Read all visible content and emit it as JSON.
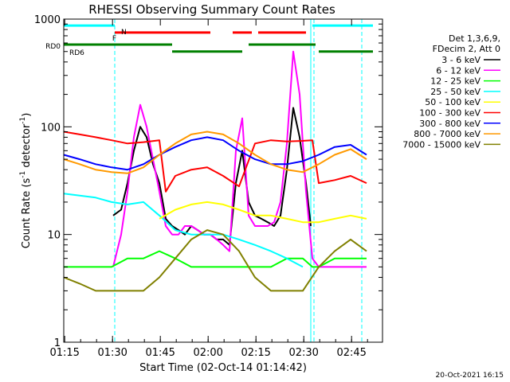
{
  "chart_data": {
    "type": "line",
    "title": "RHESSI Observing Summary Count Rates",
    "xlabel": "Start Time (02-Oct-14 01:14:42)",
    "ylabel_prefix": "Count Rate (s",
    "ylabel_sup1": "-1",
    "ylabel_mid": " detector",
    "ylabel_sup2": "-1",
    "ylabel_suffix": ")",
    "y_scale": "log",
    "ylim": [
      1,
      1000
    ],
    "xlim_minutes": [
      0,
      100
    ],
    "x_ticks": [
      {
        "label": "01:15",
        "min": 0.3
      },
      {
        "label": "01:30",
        "min": 15.3
      },
      {
        "label": "01:45",
        "min": 30.3
      },
      {
        "label": "02:00",
        "min": 45.3
      },
      {
        "label": "02:15",
        "min": 60.3
      },
      {
        "label": "02:30",
        "min": 75.3
      },
      {
        "label": "02:45",
        "min": 90.3
      }
    ],
    "y_ticks": [
      {
        "label": "1",
        "v": 1
      },
      {
        "label": "10",
        "v": 10
      },
      {
        "label": "100",
        "v": 100
      },
      {
        "label": "1000",
        "v": 1000
      }
    ],
    "legend_header": [
      "Det 1,3,6,9,",
      "FDecim 2, Att 0"
    ],
    "series": [
      {
        "name": "3 - 6 keV",
        "color": "#000000",
        "points": [
          [
            15.5,
            15
          ],
          [
            18,
            17
          ],
          [
            20,
            30
          ],
          [
            22,
            60
          ],
          [
            24,
            100
          ],
          [
            26,
            80
          ],
          [
            28,
            45
          ],
          [
            30,
            30
          ],
          [
            32,
            14
          ],
          [
            34,
            12
          ],
          [
            36,
            11
          ],
          [
            38,
            10
          ],
          [
            40,
            12
          ],
          [
            42,
            11
          ],
          [
            44,
            10
          ],
          [
            46,
            10
          ],
          [
            48,
            9
          ],
          [
            50,
            9
          ],
          [
            52,
            8
          ],
          [
            54,
            30
          ],
          [
            56,
            60
          ],
          [
            58,
            20
          ],
          [
            60,
            15
          ],
          [
            62,
            14
          ],
          [
            64,
            13
          ],
          [
            66,
            12
          ],
          [
            68,
            15
          ],
          [
            70,
            40
          ],
          [
            72,
            150
          ],
          [
            74,
            80
          ],
          [
            76,
            30
          ],
          [
            77.5,
            12
          ]
        ]
      },
      {
        "name": "6 - 12 keV",
        "color": "#ff00ff",
        "points": [
          [
            15.5,
            5
          ],
          [
            18,
            10
          ],
          [
            20,
            25
          ],
          [
            22,
            80
          ],
          [
            24,
            160
          ],
          [
            26,
            100
          ],
          [
            28,
            50
          ],
          [
            30,
            25
          ],
          [
            32,
            12
          ],
          [
            34,
            10
          ],
          [
            36,
            10
          ],
          [
            38,
            12
          ],
          [
            40,
            12
          ],
          [
            42,
            11
          ],
          [
            44,
            10
          ],
          [
            46,
            10
          ],
          [
            48,
            9
          ],
          [
            50,
            8
          ],
          [
            52,
            7
          ],
          [
            54,
            60
          ],
          [
            56,
            120
          ],
          [
            58,
            15
          ],
          [
            60,
            12
          ],
          [
            62,
            12
          ],
          [
            64,
            12
          ],
          [
            66,
            13
          ],
          [
            68,
            20
          ],
          [
            70,
            70
          ],
          [
            72,
            500
          ],
          [
            74,
            200
          ],
          [
            76,
            25
          ],
          [
            78,
            6
          ],
          [
            80,
            5
          ],
          [
            84,
            5
          ],
          [
            90,
            5
          ],
          [
            95,
            5
          ]
        ]
      },
      {
        "name": "12 - 25 keV",
        "color": "#00ff00",
        "points": [
          [
            0,
            5
          ],
          [
            5,
            5
          ],
          [
            10,
            5
          ],
          [
            15,
            5
          ],
          [
            20,
            6
          ],
          [
            25,
            6
          ],
          [
            30,
            7
          ],
          [
            35,
            6
          ],
          [
            40,
            5
          ],
          [
            45,
            5
          ],
          [
            50,
            5
          ],
          [
            55,
            5
          ],
          [
            60,
            5
          ],
          [
            65,
            5
          ],
          [
            70,
            6
          ],
          [
            75,
            6
          ],
          [
            78,
            5
          ],
          [
            80,
            5
          ],
          [
            85,
            6
          ],
          [
            90,
            6
          ],
          [
            95,
            6
          ]
        ]
      },
      {
        "name": "25 - 50 keV",
        "color": "#00ffff",
        "points": [
          [
            0,
            24
          ],
          [
            5,
            23
          ],
          [
            10,
            22
          ],
          [
            15,
            20
          ],
          [
            20,
            19
          ],
          [
            25,
            20
          ],
          [
            30,
            15
          ],
          [
            35,
            11
          ],
          [
            40,
            10
          ],
          [
            45,
            10
          ],
          [
            50,
            10
          ],
          [
            55,
            9
          ],
          [
            60,
            8
          ],
          [
            65,
            7
          ],
          [
            70,
            6
          ],
          [
            75,
            5
          ]
        ]
      },
      {
        "name": "50 - 100 keV",
        "color": "#ffff00",
        "points": [
          [
            30,
            14
          ],
          [
            35,
            17
          ],
          [
            40,
            19
          ],
          [
            45,
            20
          ],
          [
            50,
            19
          ],
          [
            55,
            17
          ],
          [
            60,
            15
          ],
          [
            65,
            15
          ],
          [
            70,
            14
          ],
          [
            75,
            13
          ],
          [
            80,
            13
          ],
          [
            85,
            14
          ],
          [
            90,
            15
          ],
          [
            95,
            14
          ]
        ]
      },
      {
        "name": "100 - 300 keV",
        "color": "#ff0000",
        "points": [
          [
            0,
            90
          ],
          [
            5,
            85
          ],
          [
            10,
            80
          ],
          [
            15,
            75
          ],
          [
            20,
            70
          ],
          [
            25,
            72
          ],
          [
            30,
            75
          ],
          [
            32,
            25
          ],
          [
            35,
            35
          ],
          [
            40,
            40
          ],
          [
            45,
            42
          ],
          [
            50,
            35
          ],
          [
            55,
            28
          ],
          [
            60,
            70
          ],
          [
            65,
            75
          ],
          [
            70,
            73
          ],
          [
            75,
            74
          ],
          [
            78,
            75
          ],
          [
            80,
            30
          ],
          [
            85,
            32
          ],
          [
            90,
            35
          ],
          [
            95,
            30
          ]
        ]
      },
      {
        "name": "300 - 800 keV",
        "color": "#0000ff",
        "points": [
          [
            0,
            55
          ],
          [
            5,
            50
          ],
          [
            10,
            45
          ],
          [
            15,
            42
          ],
          [
            20,
            40
          ],
          [
            25,
            45
          ],
          [
            30,
            55
          ],
          [
            35,
            65
          ],
          [
            40,
            75
          ],
          [
            45,
            80
          ],
          [
            50,
            75
          ],
          [
            55,
            60
          ],
          [
            60,
            50
          ],
          [
            65,
            45
          ],
          [
            70,
            45
          ],
          [
            75,
            48
          ],
          [
            80,
            55
          ],
          [
            85,
            65
          ],
          [
            90,
            68
          ],
          [
            95,
            55
          ]
        ]
      },
      {
        "name": "800 - 7000 keV",
        "color": "#ff9900",
        "points": [
          [
            0,
            50
          ],
          [
            5,
            45
          ],
          [
            10,
            40
          ],
          [
            15,
            38
          ],
          [
            20,
            37
          ],
          [
            25,
            42
          ],
          [
            30,
            55
          ],
          [
            35,
            70
          ],
          [
            40,
            85
          ],
          [
            45,
            90
          ],
          [
            50,
            85
          ],
          [
            55,
            70
          ],
          [
            60,
            55
          ],
          [
            65,
            45
          ],
          [
            70,
            40
          ],
          [
            75,
            38
          ],
          [
            80,
            45
          ],
          [
            85,
            55
          ],
          [
            90,
            62
          ],
          [
            95,
            50
          ]
        ]
      },
      {
        "name": "7000 - 15000 keV",
        "color": "#808000",
        "points": [
          [
            0,
            4
          ],
          [
            5,
            3.5
          ],
          [
            10,
            3
          ],
          [
            15,
            3
          ],
          [
            20,
            3
          ],
          [
            25,
            3
          ],
          [
            30,
            4
          ],
          [
            35,
            6
          ],
          [
            40,
            9
          ],
          [
            45,
            11
          ],
          [
            50,
            10
          ],
          [
            55,
            7
          ],
          [
            60,
            4
          ],
          [
            65,
            3
          ],
          [
            70,
            3
          ],
          [
            75,
            3
          ],
          [
            80,
            5
          ],
          [
            85,
            7
          ],
          [
            90,
            9
          ],
          [
            95,
            7
          ]
        ]
      }
    ],
    "state_bars": [
      {
        "label": "N",
        "color": "#00ffff",
        "level": 870,
        "segments": [
          [
            0,
            16
          ],
          [
            78,
            97
          ]
        ]
      },
      {
        "label": "F",
        "color": "#ff0000",
        "level": 750,
        "segments": [
          [
            16,
            46
          ],
          [
            53,
            59
          ],
          [
            61,
            76
          ]
        ]
      },
      {
        "label": "RD0",
        "color": "#008000",
        "level": 580,
        "segments": [
          [
            0,
            34
          ],
          [
            58,
            79
          ]
        ]
      },
      {
        "label": "RD6",
        "color": "#008000",
        "level": 500,
        "segments": [
          [
            34,
            56
          ],
          [
            80,
            97
          ]
        ]
      }
    ],
    "vlines": [
      {
        "min": 0,
        "style": "solid"
      },
      {
        "min": 16,
        "style": "dashed"
      },
      {
        "min": 77.5,
        "style": "solid"
      },
      {
        "min": 78.5,
        "style": "dashed"
      },
      {
        "min": 93.5,
        "style": "dashed"
      }
    ]
  },
  "footer_date": "20-Oct-2021 16:15"
}
